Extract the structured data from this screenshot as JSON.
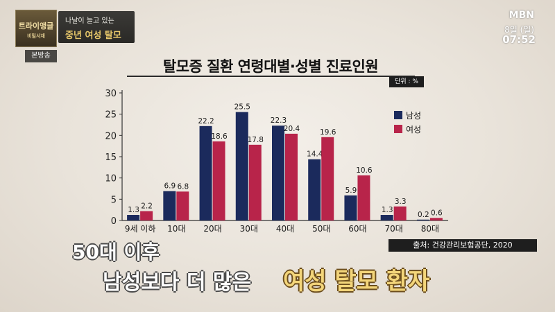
{
  "overlay": {
    "program_logo": "트라이앵글",
    "program_logo_sub": "비밀서재",
    "subject_line1": "나날이 늘고 있는",
    "subject_line2": "중년 여성 탈모",
    "broadcast_label": "본방송",
    "channel": "MBN",
    "date": "8일 (일)",
    "time": "07:52"
  },
  "subtitles": {
    "line1": "50대 이후",
    "line2": "남성보다 더 많은",
    "highlight": "여성 탈모 환자"
  },
  "caption": "출처: 건강관리보험공단, 2020",
  "chart_data": {
    "type": "bar",
    "title": "탈모증 질환 연령대별·성별 진료인원",
    "unit": "단위 : %",
    "categories": [
      "9세 이하",
      "10대",
      "20대",
      "30대",
      "40대",
      "50대",
      "60대",
      "70대",
      "80대"
    ],
    "series": [
      {
        "name": "남성",
        "values": [
          1.3,
          6.9,
          22.2,
          25.5,
          22.3,
          14.4,
          5.9,
          1.3,
          0.2
        ],
        "color": "#1b2a5c"
      },
      {
        "name": "여성",
        "values": [
          2.2,
          6.8,
          18.6,
          17.8,
          20.4,
          19.6,
          10.6,
          3.3,
          0.6
        ],
        "color": "#b8244a"
      }
    ],
    "ylim": [
      0,
      30
    ],
    "yticks": [
      0,
      5,
      10,
      15,
      20,
      25,
      30
    ],
    "grid": false,
    "legend": "right"
  }
}
